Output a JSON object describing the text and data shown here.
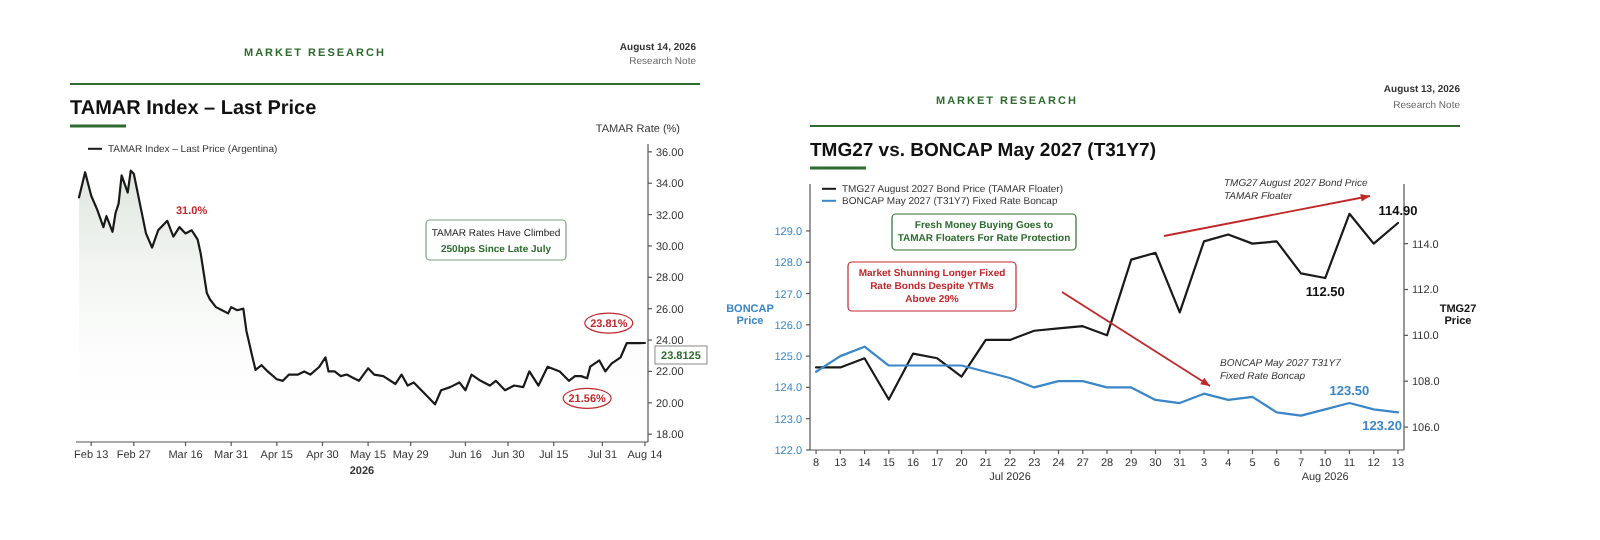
{
  "chart_data": [
    {
      "type": "area",
      "title": "TAMAR Index – Last Price",
      "xlabel": "2026",
      "ylabel": "TAMAR Rate (%)",
      "x": [
        "2026-02-09",
        "2026-02-11",
        "2026-02-13",
        "2026-02-15",
        "2026-02-17",
        "2026-02-18",
        "2026-02-20",
        "2026-02-21",
        "2026-02-22",
        "2026-02-23",
        "2026-02-25",
        "2026-02-26",
        "2026-02-27",
        "2026-03-01",
        "2026-03-03",
        "2026-03-05",
        "2026-03-07",
        "2026-03-10",
        "2026-03-12",
        "2026-03-14",
        "2026-03-16",
        "2026-03-18",
        "2026-03-19",
        "2026-03-20",
        "2026-03-21",
        "2026-03-23",
        "2026-03-24",
        "2026-03-26",
        "2026-03-28",
        "2026-03-30",
        "2026-03-31",
        "2026-04-02",
        "2026-04-04",
        "2026-04-05",
        "2026-04-07",
        "2026-04-08",
        "2026-04-10",
        "2026-04-12",
        "2026-04-15",
        "2026-04-17",
        "2026-04-19",
        "2026-04-22",
        "2026-04-24",
        "2026-04-26",
        "2026-04-29",
        "2026-05-01",
        "2026-05-02",
        "2026-05-04",
        "2026-05-06",
        "2026-05-08",
        "2026-05-10",
        "2026-05-12",
        "2026-05-15",
        "2026-05-17",
        "2026-05-20",
        "2026-05-24",
        "2026-05-26",
        "2026-05-28",
        "2026-05-30",
        "2026-06-02",
        "2026-06-06",
        "2026-06-08",
        "2026-06-11",
        "2026-06-14",
        "2026-06-16",
        "2026-06-18",
        "2026-06-21",
        "2026-06-24",
        "2026-06-26",
        "2026-06-29",
        "2026-07-02",
        "2026-07-05",
        "2026-07-07",
        "2026-07-10",
        "2026-07-13",
        "2026-07-17",
        "2026-07-20",
        "2026-07-22",
        "2026-07-24",
        "2026-07-26",
        "2026-07-27",
        "2026-07-30",
        "2026-08-01",
        "2026-08-03",
        "2026-08-06",
        "2026-08-08",
        "2026-08-10",
        "2026-08-12",
        "2026-08-14"
      ],
      "series": [
        {
          "name": "TAMAR Index – Last Price (Argentina)",
          "color": "#1a1a1a",
          "values": [
            33.1,
            34.7,
            33.2,
            32.3,
            31.2,
            31.9,
            30.9,
            32.1,
            32.7,
            34.5,
            33.4,
            34.8,
            34.6,
            32.7,
            30.8,
            29.9,
            31.0,
            31.6,
            30.6,
            31.2,
            30.8,
            31.0,
            30.7,
            30.4,
            29.5,
            27.0,
            26.6,
            26.1,
            25.9,
            25.7,
            26.1,
            25.9,
            26.0,
            24.6,
            22.9,
            22.1,
            22.4,
            22.0,
            21.5,
            21.4,
            21.8,
            21.8,
            22.0,
            21.8,
            22.3,
            22.9,
            22.0,
            22.0,
            21.7,
            21.8,
            21.6,
            21.4,
            22.2,
            21.8,
            21.7,
            21.2,
            21.8,
            21.1,
            21.3,
            20.7,
            19.9,
            20.8,
            21.0,
            21.3,
            20.8,
            21.8,
            21.4,
            21.1,
            21.4,
            20.8,
            21.1,
            21.0,
            22.0,
            21.1,
            22.3,
            22.0,
            21.4,
            21.7,
            21.7,
            21.56,
            22.3,
            22.7,
            22.0,
            22.5,
            22.9,
            23.8,
            23.81,
            23.8,
            23.8125
          ]
        }
      ],
      "xlim": [
        "2026-02-08",
        "2026-08-15"
      ],
      "xticks": [
        {
          "value": "2026-02-13",
          "label": "Feb 13"
        },
        {
          "value": "2026-02-27",
          "label": "Feb 27"
        },
        {
          "value": "2026-03-16",
          "label": "Mar 16"
        },
        {
          "value": "2026-03-31",
          "label": "Mar 31"
        },
        {
          "value": "2026-04-15",
          "label": "Apr 15"
        },
        {
          "value": "2026-04-30",
          "label": "Apr 30"
        },
        {
          "value": "2026-05-15",
          "label": "May 15"
        },
        {
          "value": "2026-05-29",
          "label": "May 29"
        },
        {
          "value": "2026-06-16",
          "label": "Jun 16"
        },
        {
          "value": "2026-06-30",
          "label": "Jun 30"
        },
        {
          "value": "2026-07-15",
          "label": "Jul 15"
        },
        {
          "value": "2026-07-31",
          "label": "Jul 31"
        },
        {
          "value": "2026-08-14",
          "label": "Aug 14"
        }
      ],
      "ylim": [
        17.5,
        36.5
      ],
      "yticks": [
        {
          "value": 18,
          "label": "18.00"
        },
        {
          "value": 20,
          "label": "20.00"
        },
        {
          "value": 22,
          "label": "22.00"
        },
        {
          "value": 24,
          "label": "24.00"
        },
        {
          "value": 26,
          "label": "26.00"
        },
        {
          "value": 28,
          "label": "28.00"
        },
        {
          "value": 30,
          "label": "30.00"
        },
        {
          "value": 32,
          "label": "32.00"
        },
        {
          "value": 34,
          "label": "34.00"
        },
        {
          "value": 36,
          "label": "36.00"
        }
      ],
      "legend": "top left",
      "marker": "none",
      "line_style": "solid",
      "annotations": [
        "MARKET RESEARCH",
        "August 14, 2026",
        "Research Note",
        "TAMAR Rates Have Climbed",
        "250bps Since Late July",
        {
          "text": "31.0%",
          "x": "2026-03-18",
          "y": 31.0
        },
        {
          "text": "23.81%",
          "x": "2026-08-10",
          "y": 23.81
        },
        {
          "text": "21.56%",
          "x": "2026-07-26",
          "y": 21.56
        },
        {
          "text": "23.8125",
          "x": "2026-08-14",
          "y": 23.8125
        }
      ]
    },
    {
      "type": "line",
      "title": "TMG27 vs. BONCAP May 2027 (T31Y7)",
      "ylabel": "BONCAP Price",
      "y2label": "TMG27 Price",
      "categories": [
        "8",
        "13",
        "14",
        "15",
        "16",
        "17",
        "20",
        "21",
        "22",
        "23",
        "24",
        "27",
        "28",
        "29",
        "30",
        "31",
        "3",
        "4",
        "5",
        "6",
        "7",
        "10",
        "11",
        "12",
        "13"
      ],
      "series": [
        {
          "name": "TMG27 August 2027 Bond Price (TAMAR Floater)",
          "color": "#1a1a1a",
          "axis": "y2",
          "values": [
            108.6,
            108.6,
            109.0,
            107.2,
            109.2,
            109.0,
            108.2,
            109.8,
            109.8,
            110.2,
            110.3,
            110.4,
            110.0,
            113.3,
            113.6,
            111.0,
            114.1,
            114.4,
            114.0,
            114.1,
            112.7,
            112.5,
            115.3,
            114.0,
            114.9
          ],
          "value_labels": [
            null,
            null,
            null,
            null,
            null,
            null,
            null,
            null,
            null,
            null,
            null,
            null,
            null,
            null,
            null,
            null,
            null,
            null,
            null,
            null,
            null,
            "112.50",
            null,
            null,
            "114.90"
          ]
        },
        {
          "name": "BONCAP May 2027 (T31Y7) Fixed Rate Boncap",
          "color": "#3a86c8",
          "values": [
            124.5,
            125.0,
            125.3,
            124.7,
            124.7,
            124.7,
            124.7,
            124.5,
            124.3,
            124.0,
            124.2,
            124.2,
            124.0,
            124.0,
            123.6,
            123.5,
            123.8,
            123.6,
            123.7,
            123.2,
            123.1,
            123.3,
            123.5,
            123.3,
            123.2
          ],
          "value_labels": [
            null,
            null,
            null,
            null,
            null,
            null,
            null,
            null,
            null,
            null,
            null,
            null,
            null,
            null,
            null,
            null,
            null,
            null,
            null,
            null,
            null,
            null,
            "123.50",
            null,
            "123.20"
          ]
        }
      ],
      "ylim": [
        122,
        130.5
      ],
      "yticks": [
        {
          "value": 122,
          "label": "122.0"
        },
        {
          "value": 123,
          "label": "123.0"
        },
        {
          "value": 124,
          "label": "124.0"
        },
        {
          "value": 125,
          "label": "125.0"
        },
        {
          "value": 126,
          "label": "126.0"
        },
        {
          "value": 127,
          "label": "127.0"
        },
        {
          "value": 128,
          "label": "128.0"
        },
        {
          "value": 129,
          "label": "129.0"
        }
      ],
      "y2lim": [
        105,
        116.6
      ],
      "y2ticks": [
        {
          "value": 106,
          "label": "106.0"
        },
        {
          "value": 108,
          "label": "108.0"
        },
        {
          "value": 110,
          "label": "110.0"
        },
        {
          "value": 112,
          "label": "112.0"
        },
        {
          "value": 114,
          "label": "114.0"
        }
      ],
      "legend": "top left",
      "marker": "none",
      "line_style": "solid",
      "annotations": [
        "MARKET RESEARCH",
        "August 13, 2026",
        "Research Note",
        "Fresh Money Buying Goes to\nTAMAR Floaters For Rate Protection",
        "Market Shunning Longer Fixed\nRate Bonds Despite YTMs\nAbove 29%",
        "TMG27 August 2027 Bond Price\nTAMAR Floater",
        "BONCAP May 2027 T31Y7\nFixed Rate Boncap",
        "Jul 2026",
        "Aug 2026"
      ]
    }
  ]
}
